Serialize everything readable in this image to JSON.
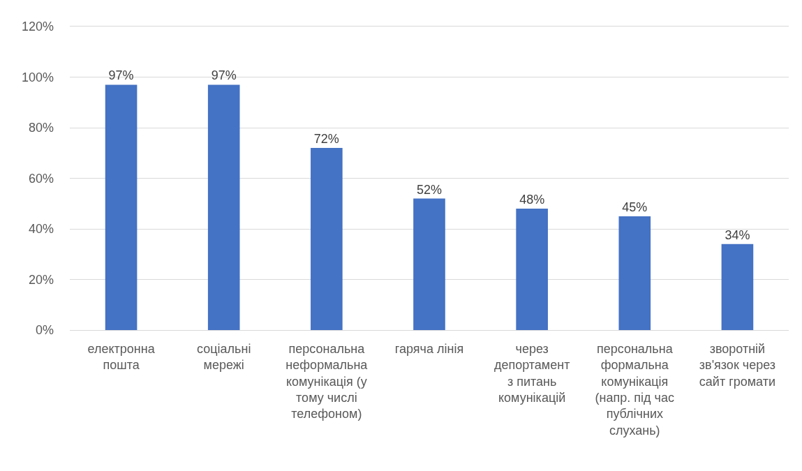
{
  "chart_data": {
    "type": "bar",
    "categories": [
      "електронна\nпошта",
      "соціальні\nмережі",
      "персональна\nнеформальна\nкомунікація (у\nтому числі\nтелефоном)",
      "гаряча лінія",
      "через\nдепортамент\nз питань\nкомунікацій",
      "персональна\nформальна\nкомунікація\n(напр. під час\nпублічних\nслухань)",
      "зворотній\nзв'язок через\nсайт громати"
    ],
    "values": [
      97,
      97,
      72,
      52,
      48,
      45,
      34
    ],
    "color": "#4472c4",
    "value_labels": [
      "97%",
      "97%",
      "72%",
      "52%",
      "48%",
      "45%",
      "34%"
    ],
    "ylim": [
      0,
      120
    ],
    "yticks": [
      {
        "value": 0,
        "label": "0%"
      },
      {
        "value": 20,
        "label": "20%"
      },
      {
        "value": 40,
        "label": "40%"
      },
      {
        "value": 60,
        "label": "60%"
      },
      {
        "value": 80,
        "label": "80%"
      },
      {
        "value": 100,
        "label": "100%"
      },
      {
        "value": 120,
        "label": "120%"
      }
    ],
    "grid": "y"
  }
}
